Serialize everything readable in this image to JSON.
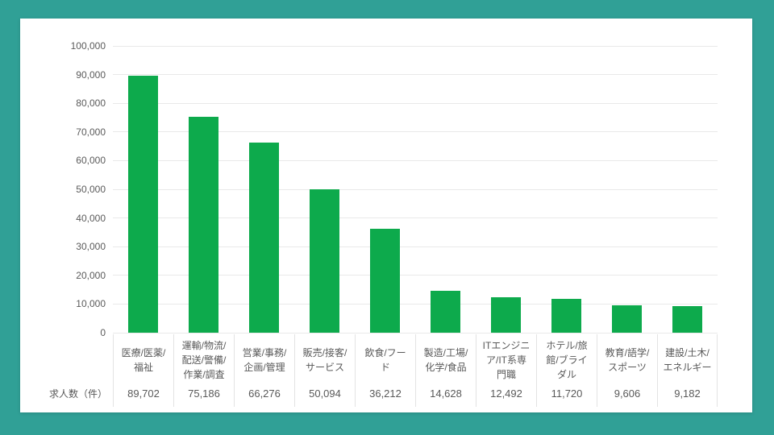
{
  "page": {
    "background_color": "#30a096",
    "card_color": "#ffffff",
    "gridline_color": "#e9e9e9",
    "separator_color": "#e3e3e3",
    "text_color": "#595959"
  },
  "chart_data": {
    "type": "bar",
    "title": "",
    "unit_label": "求人数（件）",
    "bar_color": "#0daa4c",
    "ylim": [
      0,
      100000
    ],
    "ytick_step": 10000,
    "ytick_labels": [
      "100,000",
      "90,000",
      "80,000",
      "70,000",
      "60,000",
      "50,000",
      "40,000",
      "30,000",
      "20,000",
      "10,000",
      "0"
    ],
    "grid": "horizontal",
    "legend": "none",
    "categories": [
      "医療/医薬/\n福祉",
      "運輸/物流/\n配送/警備/\n作業/調査",
      "営業/事務/\n企画/管理",
      "販売/接客/\nサービス",
      "飲食/フー\nド",
      "製造/工場/\n化学/食品",
      "ITエンジニ\nア/IT系専\n門職",
      "ホテル/旅\n館/ブライ\nダル",
      "教育/語学/\nスポーツ",
      "建設/土木/\nエネルギー"
    ],
    "values": [
      89702,
      75186,
      66276,
      50094,
      36212,
      14628,
      12492,
      11720,
      9606,
      9182
    ],
    "value_labels": [
      "89,702",
      "75,186",
      "66,276",
      "50,094",
      "36,212",
      "14,628",
      "12,492",
      "11,720",
      "9,606",
      "9,182"
    ]
  }
}
